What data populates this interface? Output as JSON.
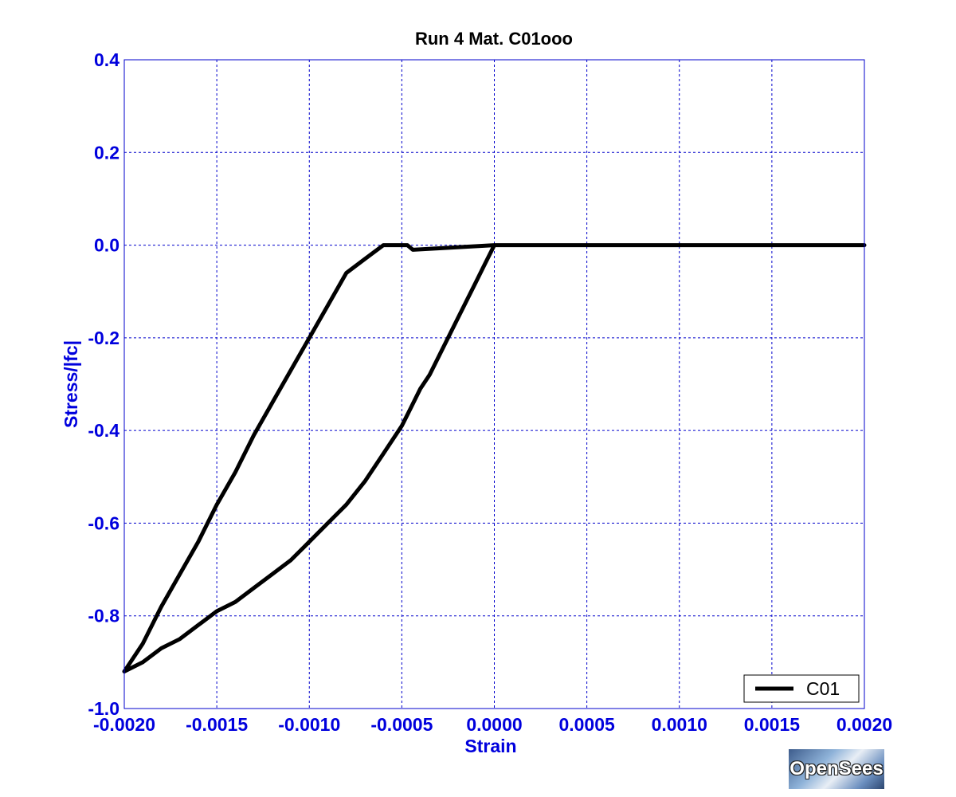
{
  "chart_data": {
    "type": "line",
    "title": "Run 4    Mat. C01ooo",
    "xlabel": "Strain",
    "ylabel": "Stress/|fc|",
    "xlim": [
      -0.002,
      0.002
    ],
    "ylim": [
      -1.0,
      0.4
    ],
    "xticks": [
      "-0.0020",
      "-0.0015",
      "-0.0010",
      "-0.0005",
      "0.0000",
      "0.0005",
      "0.0010",
      "0.0015",
      "0.0020"
    ],
    "yticks": [
      "0.4",
      "0.2",
      "0.0",
      "-0.2",
      "-0.4",
      "-0.6",
      "-0.8",
      "-1.0"
    ],
    "grid": true,
    "legend_position": "bottom-right",
    "series": [
      {
        "name": "C01",
        "color": "#000000",
        "x": [
          0.002,
          0.0,
          -5e-05,
          -0.0001,
          -0.00015,
          -0.0002,
          -0.00025,
          -0.0003,
          -0.00035,
          -0.0004,
          -0.00045,
          -0.0005,
          -0.00055,
          -0.0006,
          -0.0007,
          -0.0008,
          -0.0009,
          -0.001,
          -0.0011,
          -0.0012,
          -0.0013,
          -0.0014,
          -0.0015,
          -0.0016,
          -0.0017,
          -0.0018,
          -0.0019,
          -0.002,
          -0.0019,
          -0.0018,
          -0.0017,
          -0.0016,
          -0.0015,
          -0.0014,
          -0.0013,
          -0.0012,
          -0.0011,
          -0.001,
          -0.0009,
          -0.0008,
          -0.0007,
          -0.0006,
          -0.0005,
          -0.00047,
          -0.00044,
          0.0,
          0.002
        ],
        "y": [
          0.0,
          0.0,
          -0.04,
          -0.08,
          -0.12,
          -0.16,
          -0.2,
          -0.24,
          -0.28,
          -0.31,
          -0.35,
          -0.39,
          -0.42,
          -0.45,
          -0.51,
          -0.56,
          -0.6,
          -0.64,
          -0.68,
          -0.71,
          -0.74,
          -0.77,
          -0.79,
          -0.82,
          -0.85,
          -0.87,
          -0.9,
          -0.92,
          -0.86,
          -0.78,
          -0.71,
          -0.64,
          -0.56,
          -0.49,
          -0.41,
          -0.34,
          -0.27,
          -0.2,
          -0.13,
          -0.06,
          -0.03,
          0.0,
          0.0,
          0.0,
          -0.01,
          0.0,
          0.0
        ]
      }
    ]
  },
  "logo": {
    "text": "OpenSees"
  }
}
